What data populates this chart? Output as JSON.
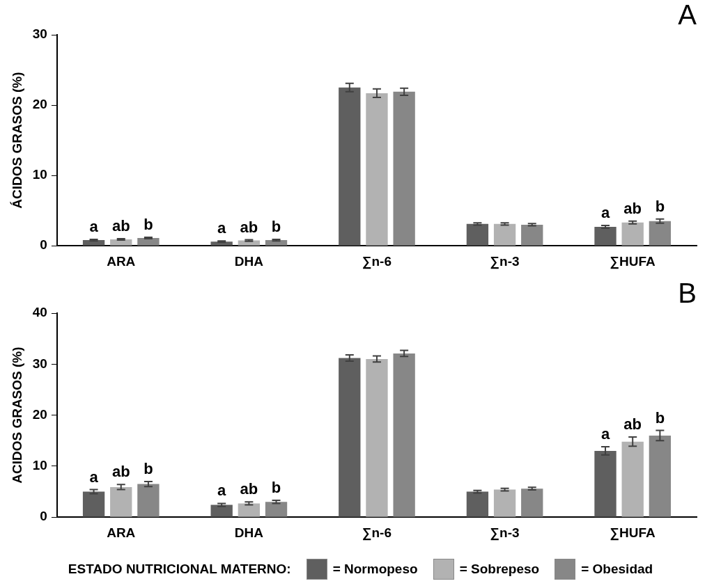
{
  "chart_data": [
    {
      "type": "bar",
      "title": "A",
      "ylabel": "ÁCIDOS GRASOS (%)",
      "categories": [
        "ARA",
        "DHA",
        "∑n-6",
        "∑n-3",
        "∑HUFA"
      ],
      "ylim": [
        0,
        30
      ],
      "yticks": [
        0,
        10,
        20,
        30
      ],
      "grid": false,
      "legend": false,
      "series": [
        {
          "color": "#5f5f5f",
          "values": [
            0.8,
            0.6,
            22.5,
            3.1,
            2.7
          ],
          "errors": [
            0.1,
            0.1,
            0.6,
            0.15,
            0.2
          ],
          "value_labels": [
            "a",
            "a",
            null,
            null,
            "a"
          ]
        },
        {
          "color": "#b2b2b2",
          "values": [
            0.9,
            0.75,
            21.7,
            3.1,
            3.3
          ],
          "errors": [
            0.1,
            0.1,
            0.6,
            0.15,
            0.2
          ],
          "value_labels": [
            "ab",
            "ab",
            null,
            null,
            "ab"
          ]
        },
        {
          "color": "#878787",
          "values": [
            1.1,
            0.8,
            21.9,
            3.0,
            3.5
          ],
          "errors": [
            0.1,
            0.1,
            0.5,
            0.15,
            0.3
          ],
          "value_labels": [
            "b",
            "b",
            null,
            null,
            "b"
          ]
        }
      ]
    },
    {
      "type": "bar",
      "title": "B",
      "ylabel": "ACIDOS GRASOS (%)",
      "categories": [
        "ARA",
        "DHA",
        "∑n-6",
        "∑n-3",
        "∑HUFA"
      ],
      "ylim": [
        0,
        40
      ],
      "yticks": [
        0,
        10,
        20,
        30,
        40
      ],
      "grid": false,
      "legend": "bottom",
      "legend_title": "ESTADO NUTRICIONAL MATERNO:",
      "series": [
        {
          "name": "= Normopeso",
          "color": "#5f5f5f",
          "values": [
            5.0,
            2.4,
            31.2,
            5.0,
            13.0
          ],
          "errors": [
            0.4,
            0.3,
            0.6,
            0.25,
            0.8
          ],
          "value_labels": [
            "a",
            "a",
            null,
            null,
            "a"
          ]
        },
        {
          "name": "= Sobrepeso",
          "color": "#b2b2b2",
          "values": [
            5.9,
            2.7,
            31.0,
            5.4,
            14.8
          ],
          "errors": [
            0.5,
            0.3,
            0.6,
            0.25,
            0.9
          ],
          "value_labels": [
            "ab",
            "ab",
            null,
            null,
            "ab"
          ]
        },
        {
          "name": "= Obesidad",
          "color": "#878787",
          "values": [
            6.5,
            3.0,
            32.1,
            5.6,
            16.0
          ],
          "errors": [
            0.5,
            0.3,
            0.6,
            0.25,
            1.0
          ],
          "value_labels": [
            "b",
            "b",
            null,
            null,
            "b"
          ]
        }
      ]
    }
  ]
}
